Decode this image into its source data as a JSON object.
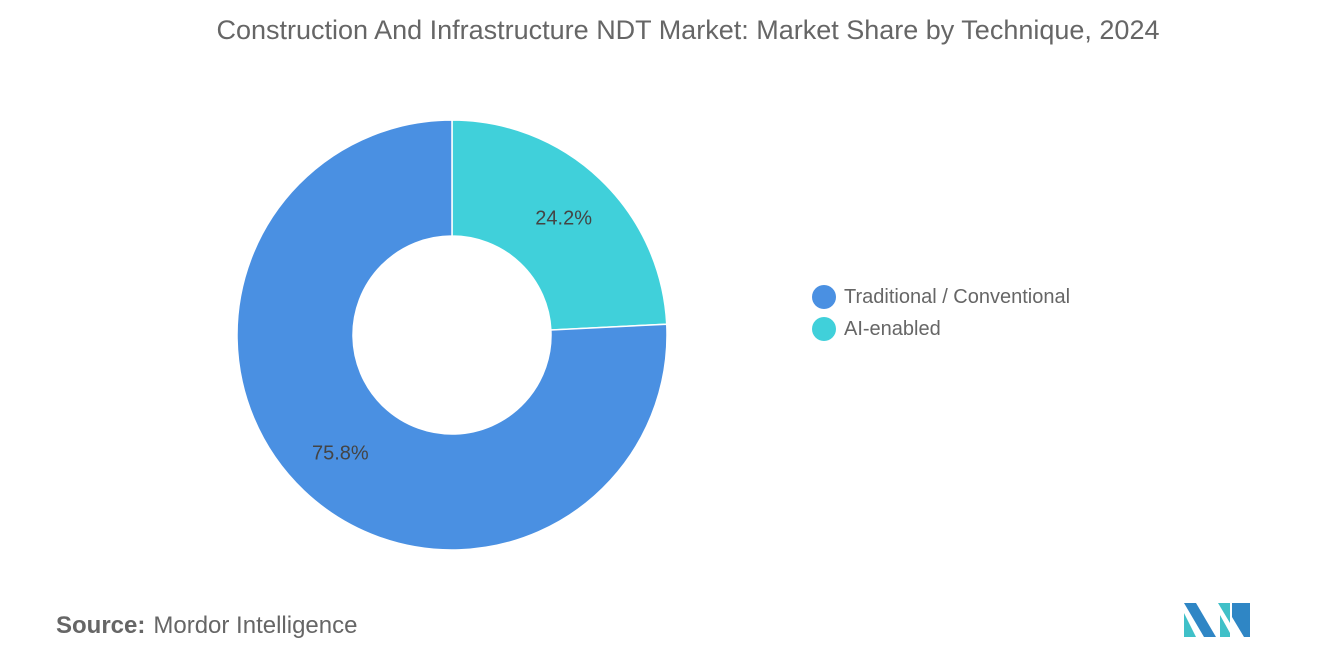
{
  "chart_data": {
    "type": "pie",
    "donut": true,
    "title": "Construction And Infrastructure NDT Market: Market Share by Technique, 2024",
    "slices": [
      {
        "label": "AI-enabled",
        "value": 24.2,
        "display": "24.2%",
        "color": "#40d0da"
      },
      {
        "label": "Traditional / Conventional",
        "value": 75.8,
        "display": "75.8%",
        "color": "#4a90e2"
      }
    ],
    "legend": {
      "placement": "right",
      "items": [
        "Traditional / Conventional",
        "AI-enabled"
      ]
    }
  },
  "source": {
    "label": "Source:",
    "value": "Mordor Intelligence"
  },
  "logo_text": "Mordor Intelligence"
}
